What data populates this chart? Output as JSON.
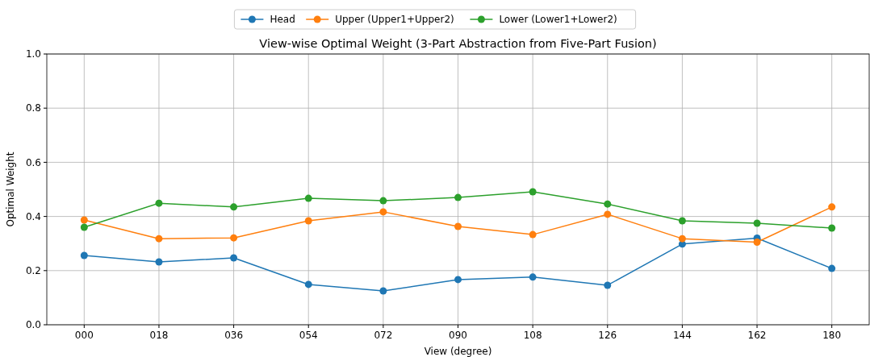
{
  "chart_data": {
    "type": "line",
    "title": "View-wise Optimal Weight (3-Part Abstraction from Five-Part Fusion)",
    "xlabel": "View (degree)",
    "ylabel": "Optimal Weight",
    "categories": [
      "000",
      "018",
      "036",
      "054",
      "072",
      "090",
      "108",
      "126",
      "144",
      "162",
      "180"
    ],
    "series": [
      {
        "name": "Head",
        "color": "#1f77b4",
        "values": [
          0.256,
          0.232,
          0.247,
          0.149,
          0.125,
          0.167,
          0.176,
          0.146,
          0.298,
          0.32,
          0.208
        ]
      },
      {
        "name": "Upper (Upper1+Upper2)",
        "color": "#ff7f0e",
        "values": [
          0.387,
          0.318,
          0.321,
          0.384,
          0.417,
          0.363,
          0.333,
          0.408,
          0.318,
          0.305,
          0.435
        ]
      },
      {
        "name": "Lower (Lower1+Lower2)",
        "color": "#2ca02c",
        "values": [
          0.36,
          0.449,
          0.435,
          0.467,
          0.458,
          0.47,
          0.491,
          0.446,
          0.384,
          0.375,
          0.357
        ]
      }
    ],
    "ylim": [
      0,
      1
    ],
    "yticks": [
      {
        "value": 0,
        "label": "0.0"
      },
      {
        "value": 0.2,
        "label": "0.2"
      },
      {
        "value": 0.4,
        "label": "0.4"
      },
      {
        "value": 0.6,
        "label": "0.6"
      },
      {
        "value": 0.8,
        "label": "0.8"
      },
      {
        "value": 1,
        "label": "1.0"
      }
    ],
    "grid": true,
    "legend": "top",
    "marker": "circle",
    "line_style": "solid"
  }
}
